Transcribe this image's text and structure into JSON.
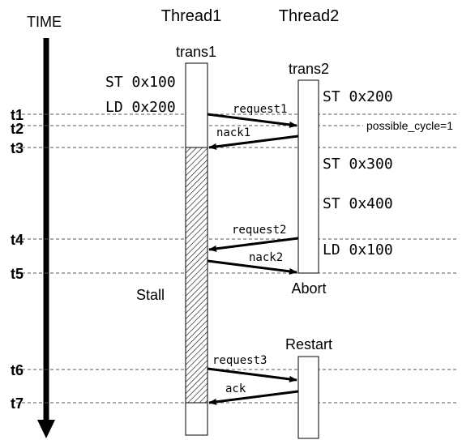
{
  "axis": {
    "label": "TIME"
  },
  "threads": {
    "thread1": {
      "header": "Thread1",
      "txn_label": "trans1",
      "stall_label": "Stall"
    },
    "thread2": {
      "header": "Thread2",
      "txn_label": "trans2",
      "abort_label": "Abort",
      "restart_label": "Restart"
    }
  },
  "time_marks": [
    "t1",
    "t2",
    "t3",
    "t4",
    "t5",
    "t6",
    "t7"
  ],
  "flag_note": "possible_cycle=1",
  "ops": {
    "thread1": [
      "ST 0x100",
      "LD 0x200"
    ],
    "thread2": [
      "ST 0x200",
      "ST 0x300",
      "ST 0x400",
      "LD 0x100"
    ]
  },
  "messages": [
    {
      "label": "request1",
      "from": "Thread1",
      "to": "Thread2"
    },
    {
      "label": "nack1",
      "from": "Thread2",
      "to": "Thread1"
    },
    {
      "label": "request2",
      "from": "Thread2",
      "to": "Thread1"
    },
    {
      "label": "nack2",
      "from": "Thread1",
      "to": "Thread2"
    },
    {
      "label": "request3",
      "from": "Thread1",
      "to": "Thread2"
    },
    {
      "label": "ack",
      "from": "Thread2",
      "to": "Thread1"
    }
  ],
  "colors": {
    "line": "#000000",
    "dashed": "#555555",
    "background": "#ffffff"
  }
}
